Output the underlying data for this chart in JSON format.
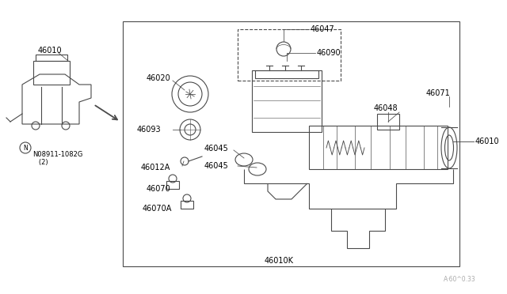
{
  "bg_color": "#ffffff",
  "line_color": "#4a4a4a",
  "text_color": "#000000",
  "fig_width": 6.4,
  "fig_height": 3.72,
  "dpi": 100,
  "watermark": "A·60^0.33",
  "labels": {
    "46010_top": "46010",
    "46020": "46020",
    "46047": "46047",
    "46090": "46090",
    "46048": "46048",
    "46071": "46071",
    "46093": "46093",
    "46045a": "46045",
    "46045b": "46045",
    "46012A": "46012A",
    "46070": "46070",
    "46070A": "46070A",
    "46010_right": "46010",
    "46010K": "46010K",
    "N08911": "N08911-1082G\n   (2)"
  }
}
